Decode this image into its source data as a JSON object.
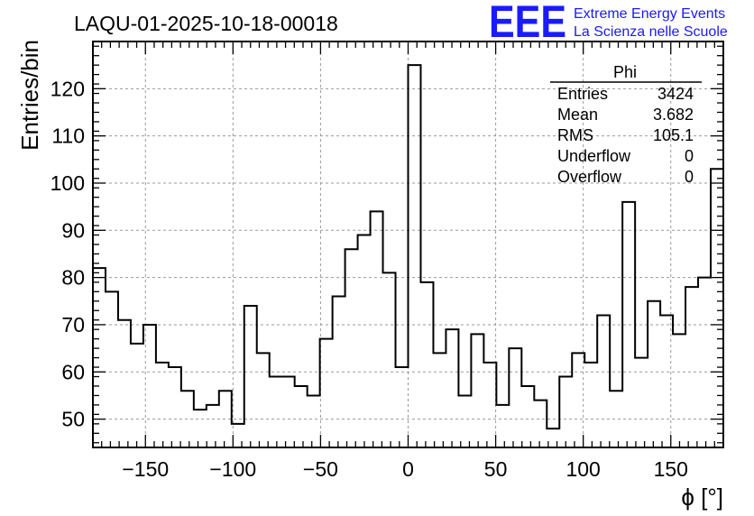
{
  "header": {
    "title": "LAQU-01-2025-10-18-00018",
    "logo_text": "EEE",
    "logo_line1": "Extreme Energy Events",
    "logo_line2": "La Scienza nelle Scuole"
  },
  "stats": {
    "name": "Phi",
    "rows": [
      {
        "label": "Entries",
        "value": "3424"
      },
      {
        "label": "Mean",
        "value": "3.682"
      },
      {
        "label": "RMS",
        "value": "105.1"
      },
      {
        "label": "Underflow",
        "value": "0"
      },
      {
        "label": "Overflow",
        "value": "0"
      }
    ]
  },
  "colors": {
    "line": "#000000",
    "grid": "#9a9a9a",
    "logo": "#1a1aff"
  },
  "chart_data": {
    "type": "histogram",
    "title": "LAQU-01-2025-10-18-00018",
    "xlabel": "ϕ [°]",
    "ylabel": "Entries/bin",
    "xlim": [
      -180,
      180
    ],
    "ylim": [
      44,
      130
    ],
    "grid": true,
    "bin_width": 7.2,
    "x_ticks": [
      -150,
      -100,
      -50,
      0,
      50,
      100,
      150
    ],
    "x_tick_labels": [
      "−150",
      "−100",
      "−50",
      "0",
      "50",
      "100",
      "150"
    ],
    "y_ticks": [
      50,
      60,
      70,
      80,
      90,
      100,
      110,
      120
    ],
    "y_tick_labels": [
      "50",
      "60",
      "70",
      "80",
      "90",
      "100",
      "110",
      "120"
    ],
    "values": [
      82,
      77,
      71,
      66,
      70,
      62,
      61,
      56,
      52,
      53,
      56,
      49,
      74,
      64,
      59,
      59,
      57,
      55,
      67,
      76,
      86,
      89,
      94,
      81,
      61,
      125,
      79,
      64,
      69,
      55,
      68,
      62,
      53,
      65,
      57,
      54,
      48,
      59,
      64,
      62,
      72,
      56,
      96,
      63,
      75,
      72,
      68,
      78,
      80,
      103
    ]
  }
}
